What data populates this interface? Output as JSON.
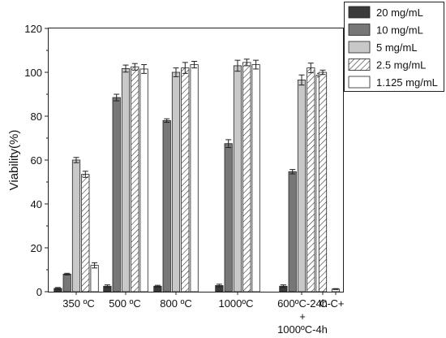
{
  "chart_data": {
    "type": "bar",
    "ylabel": "Viability(%)",
    "ylim": [
      0,
      120
    ],
    "yticks": [
      0,
      20,
      40,
      60,
      80,
      100,
      120
    ],
    "grid": false,
    "legend_position": "top-right",
    "categories": [
      {
        "lines": [
          "350 ºC"
        ]
      },
      {
        "lines": [
          "500 ºC"
        ]
      },
      {
        "lines": [
          "800 ºC"
        ]
      },
      {
        "lines": [
          "1000ºC"
        ]
      },
      {
        "lines": [
          "600ºC-24h",
          "+",
          "1000ºC-4h"
        ]
      },
      {
        "lines": [
          "C-"
        ]
      },
      {
        "lines": [
          "C+"
        ]
      }
    ],
    "series": [
      {
        "name": "20 mg/mL",
        "fill": "#3a3a3a",
        "pattern": "solid",
        "values": [
          1.5,
          2.5,
          2.5,
          2.8,
          2.5,
          null,
          null
        ],
        "errors": [
          0.4,
          0.6,
          0.4,
          0.6,
          0.6,
          null,
          null
        ]
      },
      {
        "name": "10 mg/mL",
        "fill": "#777777",
        "pattern": "solid",
        "values": [
          8,
          88.5,
          78,
          67.5,
          54.7,
          null,
          null
        ],
        "errors": [
          0.4,
          1.5,
          0.8,
          1.8,
          1,
          null,
          null
        ]
      },
      {
        "name": "5 mg/mL",
        "fill": "#c8c8c8",
        "pattern": "solid",
        "values": [
          60,
          101.7,
          100,
          103,
          96.5,
          null,
          null
        ],
        "errors": [
          1.2,
          1.6,
          2,
          2.5,
          2.3,
          null,
          null
        ]
      },
      {
        "name": "2.5 mg/mL",
        "fill": "#ffffff",
        "pattern": "hatch",
        "values": [
          53.5,
          102.5,
          102,
          104.5,
          102,
          100,
          null
        ],
        "errors": [
          1.4,
          1.5,
          2.5,
          1.5,
          2.2,
          1,
          null
        ]
      },
      {
        "name": "1.125 mg/mL",
        "fill": "#ffffff",
        "pattern": "solid",
        "values": [
          12,
          101.5,
          103.5,
          103.5,
          98.7,
          null,
          1.2
        ],
        "errors": [
          1.2,
          2,
          1.5,
          2,
          0.8,
          null,
          0.2
        ]
      }
    ]
  }
}
